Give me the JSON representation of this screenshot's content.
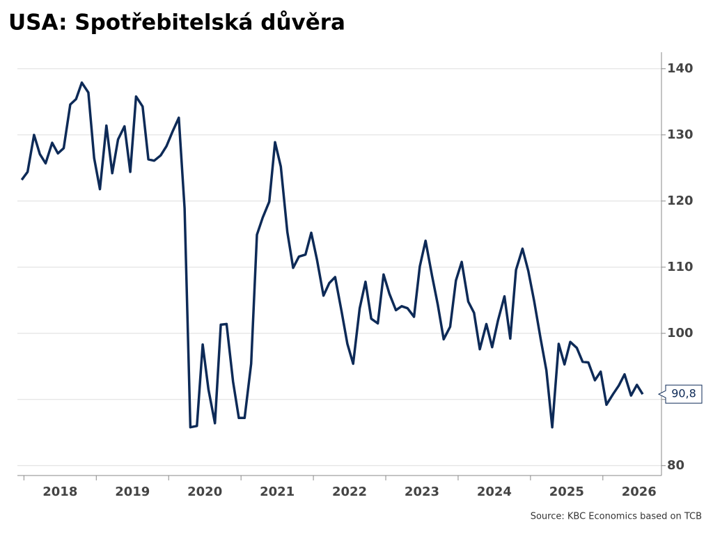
{
  "chart_data": {
    "type": "line",
    "title": "USA: Spotřebitelská důvěra",
    "source": "Source: KBC Economics based on TCB",
    "x": [
      2017.97,
      2018.05,
      2018.14,
      2018.22,
      2018.3,
      2018.39,
      2018.47,
      2018.55,
      2018.64,
      2018.72,
      2018.8,
      2018.89,
      2018.97,
      2019.05,
      2019.14,
      2019.22,
      2019.3,
      2019.39,
      2019.47,
      2019.55,
      2019.64,
      2019.72,
      2019.8,
      2019.89,
      2019.97,
      2020.05,
      2020.14,
      2020.22,
      2020.3,
      2020.39,
      2020.47,
      2020.55,
      2020.64,
      2020.72,
      2020.8,
      2020.89,
      2020.97,
      2021.05,
      2021.14,
      2021.22,
      2021.3,
      2021.39,
      2021.47,
      2021.55,
      2021.64,
      2021.72,
      2021.8,
      2021.89,
      2021.97,
      2022.05,
      2022.14,
      2022.22,
      2022.3,
      2022.39,
      2022.47,
      2022.55,
      2022.64,
      2022.72,
      2022.8,
      2022.89,
      2022.97,
      2023.05,
      2023.14,
      2023.22,
      2023.3,
      2023.39,
      2023.47,
      2023.55,
      2023.64,
      2023.72,
      2023.8,
      2023.89,
      2023.97,
      2024.05,
      2024.14,
      2024.22,
      2024.3,
      2024.39,
      2024.47,
      2024.55,
      2024.64,
      2024.72,
      2024.8,
      2024.89,
      2024.97,
      2025.05,
      2025.14,
      2025.22,
      2025.3,
      2025.39,
      2025.47,
      2025.55,
      2025.64,
      2025.72,
      2025.8,
      2025.89,
      2025.97,
      2026.05,
      2026.14,
      2026.22,
      2026.3,
      2026.39,
      2026.47,
      2026.55
    ],
    "series": [
      {
        "color": "#0d2a57",
        "values": [
          123.2,
          124.4,
          130.0,
          127.1,
          125.7,
          128.8,
          127.2,
          128.0,
          134.6,
          135.4,
          137.9,
          136.4,
          126.5,
          121.8,
          131.4,
          124.2,
          129.3,
          131.3,
          124.4,
          135.8,
          134.3,
          126.3,
          126.1,
          126.9,
          128.3,
          130.4,
          132.6,
          118.9,
          85.8,
          86.0,
          98.3,
          91.5,
          86.4,
          101.3,
          101.4,
          92.7,
          87.2,
          87.2,
          95.4,
          114.9,
          117.5,
          119.9,
          128.9,
          125.2,
          115.3,
          109.9,
          111.6,
          111.9,
          115.2,
          111.1,
          105.7,
          107.6,
          108.5,
          103.3,
          98.4,
          95.4,
          103.8,
          107.8,
          102.2,
          101.5,
          108.9,
          106.0,
          103.5,
          104.1,
          103.8,
          102.5,
          110.1,
          114.0,
          108.7,
          104.3,
          99.1,
          101.0,
          108.0,
          110.8,
          104.8,
          103.1,
          97.6,
          101.4,
          97.9,
          101.9,
          105.6,
          99.2,
          109.6,
          112.8,
          109.4,
          104.9,
          99.2,
          94.4,
          85.8,
          98.4,
          95.3,
          98.7,
          97.8,
          95.7,
          95.6,
          92.9,
          94.2,
          89.2,
          90.8,
          92.1,
          93.8,
          90.6,
          92.2,
          90.8
        ]
      }
    ],
    "last_value": {
      "value": 90.8,
      "label": "90,8"
    },
    "xlim": [
      2017.91,
      2026.81
    ],
    "xticks": [
      2018,
      2019,
      2020,
      2021,
      2022,
      2023,
      2024,
      2025,
      2026
    ],
    "ylim": [
      78.5,
      142.5
    ],
    "yticks": [
      80,
      90,
      100,
      110,
      120,
      130,
      140
    ],
    "grid": true
  }
}
